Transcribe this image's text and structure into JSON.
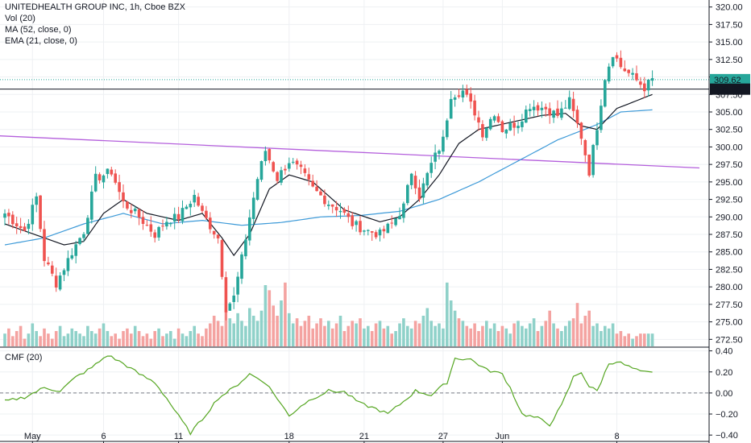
{
  "legend": {
    "title": "UNITEDHEALTH GROUP INC, 1h, Cboe BZX",
    "vol": "Vol (20)",
    "ma": "MA (52, close, 0)",
    "ema": "EMA (21, close, 0)",
    "cmf": "CMF (20)"
  },
  "colors": {
    "up": "#26a69a",
    "down": "#ef5350",
    "vol_up": "#8fd1c9",
    "vol_down": "#f4a3a1",
    "ma": "#3d9ad8",
    "ema": "#131722",
    "trendline": "#b45fdc",
    "cmf": "#55a621",
    "grid": "#eef0f3",
    "last_price": "#26a69a",
    "hline": "#131722"
  },
  "chart_data": [
    {
      "type": "candlestick",
      "title": "UNITEDHEALTH GROUP INC, 1h, Cboe BZX",
      "x_tick_labels": [
        "May",
        "6",
        "11",
        "18",
        "21",
        "27",
        "Jun",
        "8"
      ],
      "y_ticks": [
        320.0,
        317.5,
        315.0,
        312.5,
        310.0,
        307.5,
        305.0,
        302.5,
        300.0,
        297.5,
        295.0,
        292.5,
        290.0,
        287.5,
        285.0,
        282.5,
        280.0,
        277.5,
        275.0,
        272.5
      ],
      "ylim": [
        271.5,
        321.0
      ],
      "grid": true,
      "price_labels": {
        "last": 309.62,
        "horizontal_line": 308.26
      },
      "anchors": [
        {
          "i": 0,
          "c": 290.5
        },
        {
          "i": 5,
          "c": 288.0
        },
        {
          "i": 8,
          "c": 292.8
        },
        {
          "i": 10,
          "c": 284.0
        },
        {
          "i": 13,
          "c": 280.5
        },
        {
          "i": 17,
          "c": 285.0
        },
        {
          "i": 20,
          "c": 288.0
        },
        {
          "i": 23,
          "c": 295.5
        },
        {
          "i": 27,
          "c": 296.5
        },
        {
          "i": 30,
          "c": 292.0
        },
        {
          "i": 34,
          "c": 290.0
        },
        {
          "i": 38,
          "c": 287.5
        },
        {
          "i": 41,
          "c": 289.5
        },
        {
          "i": 44,
          "c": 290.0
        },
        {
          "i": 48,
          "c": 293.0
        },
        {
          "i": 50,
          "c": 290.5
        },
        {
          "i": 54,
          "c": 287.0
        },
        {
          "i": 56,
          "c": 277.0
        },
        {
          "i": 58,
          "c": 278.5
        },
        {
          "i": 60,
          "c": 284.0
        },
        {
          "i": 62,
          "c": 290.0
        },
        {
          "i": 64,
          "c": 295.5
        },
        {
          "i": 66,
          "c": 299.5
        },
        {
          "i": 69,
          "c": 295.5
        },
        {
          "i": 72,
          "c": 298.0
        },
        {
          "i": 75,
          "c": 296.5
        },
        {
          "i": 78,
          "c": 294.0
        },
        {
          "i": 82,
          "c": 292.0
        },
        {
          "i": 85,
          "c": 291.0
        },
        {
          "i": 88,
          "c": 289.0
        },
        {
          "i": 92,
          "c": 288.0
        },
        {
          "i": 95,
          "c": 287.5
        },
        {
          "i": 98,
          "c": 289.0
        },
        {
          "i": 101,
          "c": 291.5
        },
        {
          "i": 103,
          "c": 296.5
        },
        {
          "i": 105,
          "c": 293.0
        },
        {
          "i": 108,
          "c": 297.5
        },
        {
          "i": 111,
          "c": 301.0
        },
        {
          "i": 113,
          "c": 307.5
        },
        {
          "i": 116,
          "c": 308.0
        },
        {
          "i": 119,
          "c": 305.0
        },
        {
          "i": 121,
          "c": 302.0
        },
        {
          "i": 124,
          "c": 305.0
        },
        {
          "i": 126,
          "c": 302.5
        },
        {
          "i": 130,
          "c": 303.5
        },
        {
          "i": 133,
          "c": 306.0
        },
        {
          "i": 137,
          "c": 305.5
        },
        {
          "i": 140,
          "c": 304.5
        },
        {
          "i": 143,
          "c": 306.5
        },
        {
          "i": 146,
          "c": 301.5
        },
        {
          "i": 148,
          "c": 296.5
        },
        {
          "i": 150,
          "c": 303.0
        },
        {
          "i": 152,
          "c": 310.0
        },
        {
          "i": 154,
          "c": 313.5
        },
        {
          "i": 156,
          "c": 311.5
        },
        {
          "i": 159,
          "c": 310.0
        },
        {
          "i": 162,
          "c": 308.5
        },
        {
          "i": 164,
          "c": 309.6
        }
      ],
      "ma_points": [
        {
          "i": 0,
          "v": 286.0
        },
        {
          "i": 10,
          "v": 287.0
        },
        {
          "i": 20,
          "v": 289.0
        },
        {
          "i": 30,
          "v": 290.5
        },
        {
          "i": 40,
          "v": 289.0
        },
        {
          "i": 50,
          "v": 289.5
        },
        {
          "i": 60,
          "v": 288.8
        },
        {
          "i": 70,
          "v": 289.2
        },
        {
          "i": 80,
          "v": 290.0
        },
        {
          "i": 90,
          "v": 290.2
        },
        {
          "i": 100,
          "v": 290.8
        },
        {
          "i": 110,
          "v": 292.5
        },
        {
          "i": 120,
          "v": 295.0
        },
        {
          "i": 130,
          "v": 298.0
        },
        {
          "i": 140,
          "v": 301.0
        },
        {
          "i": 150,
          "v": 303.2
        },
        {
          "i": 156,
          "v": 305.0
        },
        {
          "i": 164,
          "v": 305.3
        }
      ],
      "ema_points": [
        {
          "i": 0,
          "v": 289.0
        },
        {
          "i": 10,
          "v": 287.0
        },
        {
          "i": 15,
          "v": 286.0
        },
        {
          "i": 20,
          "v": 286.5
        },
        {
          "i": 25,
          "v": 290.5
        },
        {
          "i": 30,
          "v": 292.5
        },
        {
          "i": 36,
          "v": 290.5
        },
        {
          "i": 44,
          "v": 289.5
        },
        {
          "i": 50,
          "v": 290.5
        },
        {
          "i": 55,
          "v": 287.0
        },
        {
          "i": 58,
          "v": 284.5
        },
        {
          "i": 62,
          "v": 287.5
        },
        {
          "i": 67,
          "v": 294.0
        },
        {
          "i": 72,
          "v": 296.0
        },
        {
          "i": 78,
          "v": 295.0
        },
        {
          "i": 86,
          "v": 291.0
        },
        {
          "i": 95,
          "v": 289.3
        },
        {
          "i": 100,
          "v": 290.0
        },
        {
          "i": 105,
          "v": 292.5
        },
        {
          "i": 110,
          "v": 296.0
        },
        {
          "i": 115,
          "v": 300.5
        },
        {
          "i": 120,
          "v": 302.5
        },
        {
          "i": 128,
          "v": 303.5
        },
        {
          "i": 136,
          "v": 304.5
        },
        {
          "i": 142,
          "v": 304.8
        },
        {
          "i": 146,
          "v": 303.0
        },
        {
          "i": 150,
          "v": 302.5
        },
        {
          "i": 155,
          "v": 305.5
        },
        {
          "i": 164,
          "v": 307.5
        }
      ],
      "trendline": [
        {
          "i": -2,
          "v": 301.6
        },
        {
          "i": 179,
          "v": 297.0
        }
      ],
      "volume": [
        5,
        7,
        4,
        6,
        8,
        3,
        5,
        9,
        6,
        4,
        7,
        5,
        3,
        6,
        8,
        4,
        5,
        7,
        6,
        5,
        4,
        8,
        6,
        5,
        7,
        9,
        6,
        4,
        5,
        3,
        6,
        7,
        5,
        8,
        6,
        4,
        5,
        3,
        6,
        7,
        4,
        5,
        6,
        3,
        7,
        5,
        4,
        6,
        8,
        5,
        4,
        7,
        9,
        12,
        10,
        8,
        14,
        11,
        9,
        13,
        10,
        8,
        15,
        12,
        10,
        14,
        24,
        22,
        16,
        12,
        18,
        25,
        13,
        9,
        11,
        8,
        10,
        12,
        7,
        9,
        11,
        8,
        10,
        7,
        9,
        12,
        6,
        8,
        10,
        9,
        11,
        7,
        8,
        6,
        9,
        10,
        7,
        8,
        5,
        6,
        9,
        11,
        8,
        7,
        10,
        9,
        12,
        15,
        10,
        8,
        9,
        7,
        25,
        18,
        14,
        11,
        10,
        8,
        7,
        9,
        6,
        8,
        10,
        7,
        9,
        6,
        8,
        7,
        5,
        9,
        10,
        8,
        7,
        9,
        11,
        6,
        8,
        10,
        14,
        9,
        7,
        6,
        8,
        10,
        11,
        17,
        9,
        12,
        14,
        8,
        9,
        6,
        8,
        7,
        9,
        5,
        6,
        4,
        5,
        3,
        4
      ],
      "cmf_points": [
        {
          "i": 0,
          "v": -0.08
        },
        {
          "i": 5,
          "v": -0.04
        },
        {
          "i": 10,
          "v": 0.05
        },
        {
          "i": 14,
          "v": 0.02
        },
        {
          "i": 18,
          "v": 0.15
        },
        {
          "i": 22,
          "v": 0.24
        },
        {
          "i": 26,
          "v": 0.36
        },
        {
          "i": 30,
          "v": 0.28
        },
        {
          "i": 34,
          "v": 0.18
        },
        {
          "i": 38,
          "v": 0.1
        },
        {
          "i": 41,
          "v": -0.05
        },
        {
          "i": 44,
          "v": -0.22
        },
        {
          "i": 47,
          "v": -0.38
        },
        {
          "i": 50,
          "v": -0.25
        },
        {
          "i": 54,
          "v": -0.05
        },
        {
          "i": 58,
          "v": 0.05
        },
        {
          "i": 62,
          "v": 0.18
        },
        {
          "i": 66,
          "v": 0.1
        },
        {
          "i": 69,
          "v": -0.05
        },
        {
          "i": 72,
          "v": -0.22
        },
        {
          "i": 75,
          "v": -0.12
        },
        {
          "i": 78,
          "v": -0.05
        },
        {
          "i": 82,
          "v": 0.02
        },
        {
          "i": 86,
          "v": 0.01
        },
        {
          "i": 90,
          "v": -0.1
        },
        {
          "i": 94,
          "v": -0.15
        },
        {
          "i": 97,
          "v": -0.2
        },
        {
          "i": 101,
          "v": -0.08
        },
        {
          "i": 104,
          "v": 0.02
        },
        {
          "i": 108,
          "v": -0.02
        },
        {
          "i": 112,
          "v": 0.1
        },
        {
          "i": 114,
          "v": 0.33
        },
        {
          "i": 118,
          "v": 0.32
        },
        {
          "i": 122,
          "v": 0.22
        },
        {
          "i": 126,
          "v": 0.18
        },
        {
          "i": 128,
          "v": 0.05
        },
        {
          "i": 131,
          "v": -0.2
        },
        {
          "i": 135,
          "v": -0.24
        },
        {
          "i": 138,
          "v": -0.3
        },
        {
          "i": 141,
          "v": -0.12
        },
        {
          "i": 144,
          "v": 0.15
        },
        {
          "i": 146,
          "v": 0.2
        },
        {
          "i": 148,
          "v": 0.06
        },
        {
          "i": 150,
          "v": 0.02
        },
        {
          "i": 153,
          "v": 0.28
        },
        {
          "i": 155,
          "v": 0.3
        },
        {
          "i": 158,
          "v": 0.25
        },
        {
          "i": 161,
          "v": 0.2
        },
        {
          "i": 164,
          "v": 0.19
        }
      ]
    },
    {
      "type": "line",
      "title": "CMF (20)",
      "y_ticks": [
        0.4,
        0.2,
        0.0,
        -0.2,
        -0.4
      ],
      "ylim": [
        -0.46,
        0.42
      ],
      "zero_line": true
    }
  ]
}
